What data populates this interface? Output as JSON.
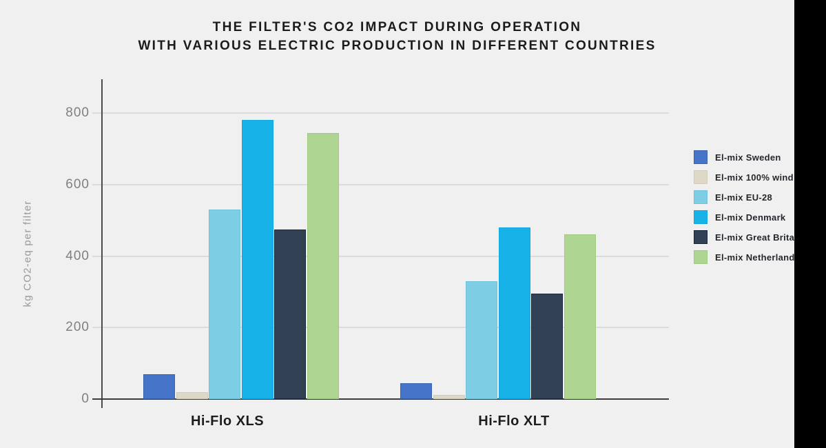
{
  "page": {
    "background_color": "#f0f0f0",
    "right_band_color": "#000000"
  },
  "chart_data": {
    "type": "bar",
    "title_lines": [
      "THE FILTER'S CO2 IMPACT DURING OPERATION",
      "WITH VARIOUS ELECTRIC PRODUCTION IN DIFFERENT COUNTRIES"
    ],
    "ylabel": "kg CO2-eq per filter",
    "categories": [
      "Hi-Flo XLS",
      "Hi-Flo XLT"
    ],
    "series": [
      {
        "name": "El-mix Sweden",
        "color": "#4574c9",
        "border": "#3a62ad",
        "values": [
          70,
          45
        ]
      },
      {
        "name": "El-mix 100% wind",
        "color": "#ded9c6",
        "border": "#d2ccb6",
        "values": [
          20,
          12
        ]
      },
      {
        "name": "El-mix EU-28",
        "color": "#7dcde4",
        "border": "#70c3db",
        "values": [
          530,
          330
        ]
      },
      {
        "name": "El-mix Denmark",
        "color": "#17b2e8",
        "border": "#10a7de",
        "values": [
          780,
          480
        ]
      },
      {
        "name": "El-mix Great Britain",
        "color": "#324154",
        "border": "#18263e",
        "values": [
          475,
          295
        ]
      },
      {
        "name": "El-mix Netherlands",
        "color": "#afd593",
        "border": "#a0c982",
        "values": [
          745,
          460
        ]
      }
    ],
    "yticks": [
      0,
      200,
      400,
      600,
      800
    ],
    "ylim": [
      0,
      800
    ],
    "grid": true,
    "legend_position": "right"
  }
}
